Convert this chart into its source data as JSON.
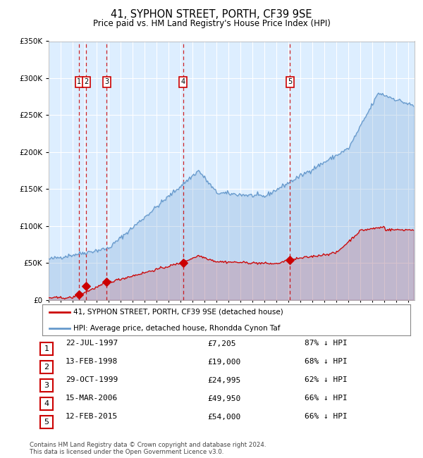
{
  "title": "41, SYPHON STREET, PORTH, CF39 9SE",
  "subtitle": "Price paid vs. HM Land Registry's House Price Index (HPI)",
  "footer1": "Contains HM Land Registry data © Crown copyright and database right 2024.",
  "footer2": "This data is licensed under the Open Government Licence v3.0.",
  "legend_red": "41, SYPHON STREET, PORTH, CF39 9SE (detached house)",
  "legend_blue": "HPI: Average price, detached house, Rhondda Cynon Taf",
  "table": [
    {
      "num": 1,
      "date": "22-JUL-1997",
      "price": "£7,205",
      "pct": "87% ↓ HPI"
    },
    {
      "num": 2,
      "date": "13-FEB-1998",
      "price": "£19,000",
      "pct": "68% ↓ HPI"
    },
    {
      "num": 3,
      "date": "29-OCT-1999",
      "price": "£24,995",
      "pct": "62% ↓ HPI"
    },
    {
      "num": 4,
      "date": "15-MAR-2006",
      "price": "£49,950",
      "pct": "66% ↓ HPI"
    },
    {
      "num": 5,
      "date": "12-FEB-2015",
      "price": "£54,000",
      "pct": "66% ↓ HPI"
    }
  ],
  "sales": [
    {
      "year": 1997.55,
      "price": 7205
    },
    {
      "year": 1998.12,
      "price": 19000
    },
    {
      "year": 1999.83,
      "price": 24995
    },
    {
      "year": 2006.21,
      "price": 49950
    },
    {
      "year": 2015.12,
      "price": 54000
    }
  ],
  "xmin": 1995.0,
  "xmax": 2025.5,
  "ymin": 0,
  "ymax": 350000,
  "yticks": [
    0,
    50000,
    100000,
    150000,
    200000,
    250000,
    300000,
    350000
  ],
  "ylabels": [
    "£0",
    "£50K",
    "£100K",
    "£150K",
    "£200K",
    "£250K",
    "£300K",
    "£350K"
  ],
  "bg_color": "#ddeeff",
  "grid_color": "#ffffff",
  "red_color": "#cc0000",
  "blue_color": "#6699cc",
  "dashed_color": "#cc0000"
}
